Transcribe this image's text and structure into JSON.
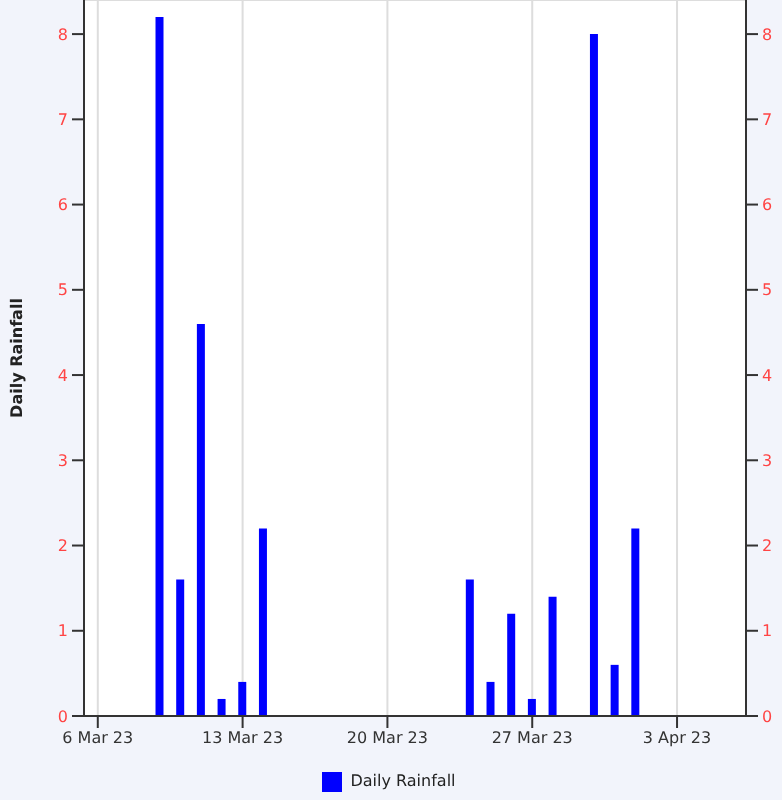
{
  "chart_data": {
    "type": "bar",
    "ylabel": "Daily Rainfall",
    "x": [
      "--03-09",
      "--03-10",
      "--03-11",
      "--03-12",
      "--03-13",
      "--03-14",
      "--03-24",
      "--03-25",
      "--03-26",
      "--03-27",
      "--03-28",
      "--03-30",
      "--03-31",
      "--04-01"
    ],
    "series": [
      {
        "name": "Daily Rainfall",
        "color": "#0000ff",
        "values": [
          8.2,
          1.6,
          4.6,
          0.2,
          0.4,
          2.2,
          1.6,
          0.4,
          1.2,
          0.2,
          1.4,
          8.0,
          0.6,
          2.2
        ]
      }
    ],
    "xlim": [
      "--03-05T08:00",
      "--04-06T08:00"
    ],
    "xticks": [
      {
        "value": "--03-06",
        "label": "6 Mar 23"
      },
      {
        "value": "--03-13",
        "label": "13 Mar 23"
      },
      {
        "value": "--03-20",
        "label": "20 Mar 23"
      },
      {
        "value": "--03-27",
        "label": "27 Mar 23"
      },
      {
        "value": "--04-03",
        "label": "3 Apr 23"
      }
    ],
    "ylim": [
      0,
      8.4
    ],
    "yticks": [
      0,
      1,
      2,
      3,
      4,
      5,
      6,
      7,
      8
    ],
    "y2lim": [
      0,
      8.4
    ],
    "y2ticks": [
      0,
      1,
      2,
      3,
      4,
      5,
      6,
      7,
      8
    ],
    "grid": true,
    "legend": "bottom"
  }
}
